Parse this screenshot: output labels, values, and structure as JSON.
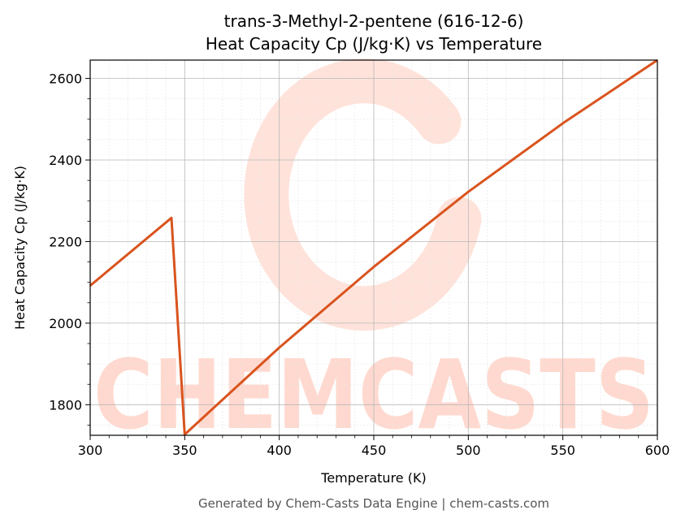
{
  "chart_data": {
    "type": "line",
    "title": "trans-3-Methyl-2-pentene (616-12-6)",
    "subtitle": "Heat Capacity Cp (J/kg·K) vs Temperature",
    "xlabel": "Temperature (K)",
    "ylabel": "Heat Capacity Cp (J/kg·K)",
    "xlim": [
      300,
      600
    ],
    "ylim": [
      1725,
      2645
    ],
    "xticks": [
      300,
      350,
      400,
      450,
      500,
      550,
      600
    ],
    "yticks": [
      1800,
      2000,
      2200,
      2400,
      2600
    ],
    "grid": true,
    "line_color": "#d9541e",
    "series": [
      {
        "x": [
          300,
          343,
          350,
          400,
          450,
          500,
          550,
          600
        ],
        "y": [
          2092,
          2258,
          1727,
          1940,
          2138,
          2322,
          2490,
          2645
        ]
      }
    ]
  },
  "watermark": "CHEMCASTS",
  "watermark_color": "#ffd9cf",
  "footer": "Generated by Chem-Casts Data Engine | chem-casts.com"
}
